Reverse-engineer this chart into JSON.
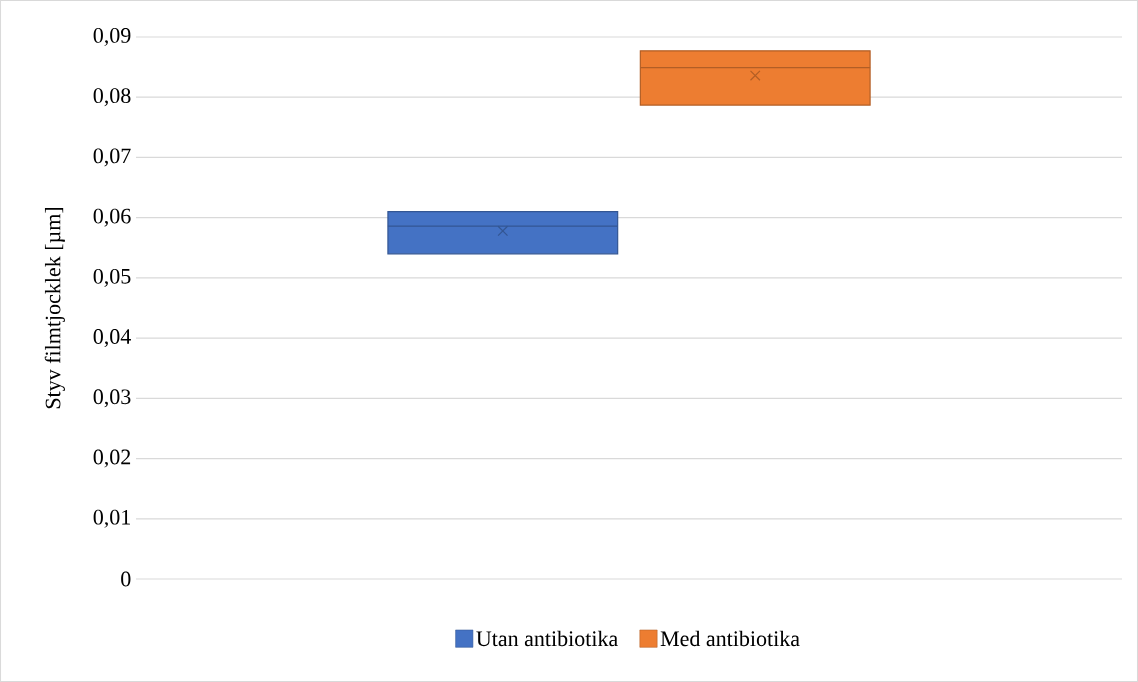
{
  "chart_data": {
    "type": "box",
    "categories": [
      null
    ],
    "ylabel": "Styv filmtjocklek [µm]",
    "ylim": [
      0,
      0.09
    ],
    "yticks": [
      0,
      {
        "value": 0.01,
        "label": "0,01"
      },
      {
        "value": 0.02,
        "label": "0,02"
      },
      {
        "value": 0.03,
        "label": "0,03"
      },
      {
        "value": 0.04,
        "label": "0,04"
      },
      {
        "value": 0.05,
        "label": "0,05"
      },
      {
        "value": 0.06,
        "label": "0,06"
      },
      {
        "value": 0.07,
        "label": "0,07"
      },
      {
        "value": 0.08,
        "label": "0,08"
      },
      {
        "value": 0.09,
        "label": "0,09"
      }
    ],
    "grid": "y",
    "legend": "bottom",
    "series": [
      {
        "name": "Utan antibiotika",
        "color": "#4472c4",
        "boxes": [
          {
            "low": 0.054,
            "q1": 0.054,
            "median": 0.0586,
            "q3": 0.061,
            "high": 0.061,
            "mean": 0.0578
          }
        ]
      },
      {
        "name": "Med antibiotika",
        "color": "#ed7d31",
        "boxes": [
          {
            "low": 0.0787,
            "q1": 0.0787,
            "median": 0.0849,
            "q3": 0.0877,
            "high": 0.0877,
            "mean": 0.0836
          }
        ]
      }
    ]
  }
}
